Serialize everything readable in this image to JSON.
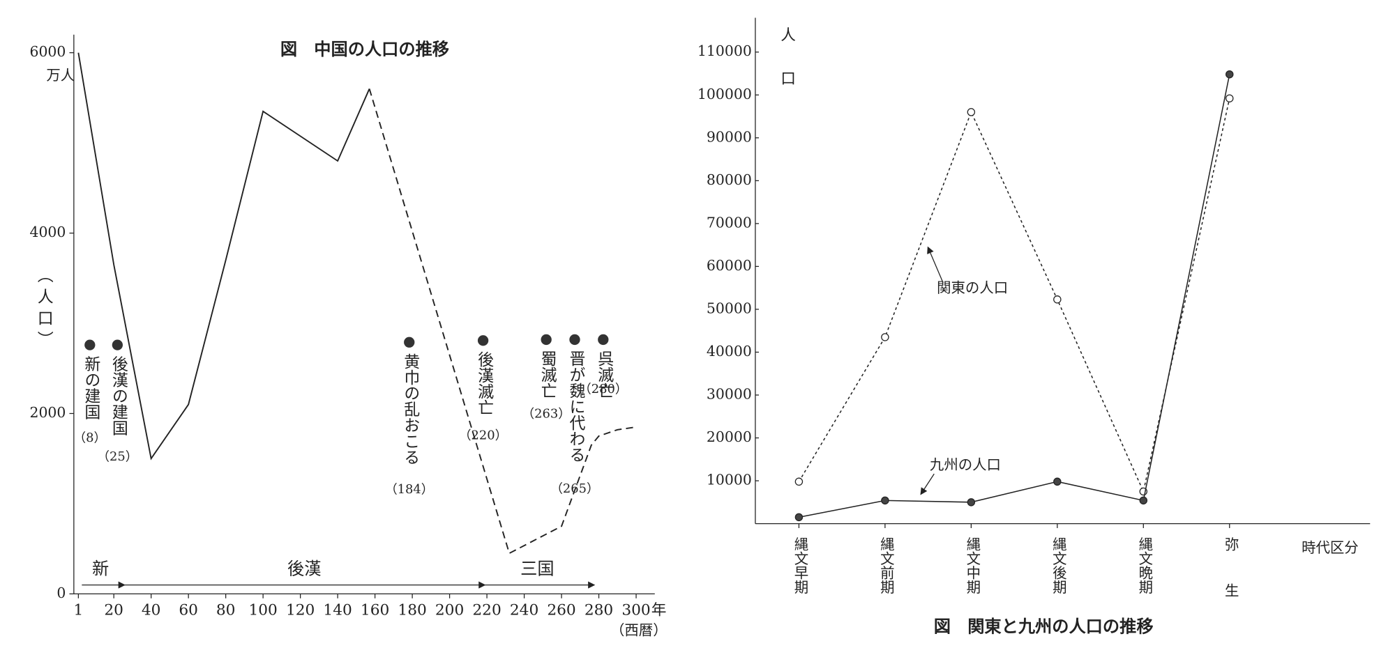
{
  "charts": [
    {
      "type": "line",
      "title": "図　中国の人口の推移",
      "unit_label": "万人",
      "ylabel": "（人口）",
      "xlabel": "年",
      "xlabel_note": "（西暦）",
      "xlim": [
        0,
        310
      ],
      "ylim": [
        0,
        6200
      ],
      "xticks": [
        1,
        20,
        40,
        60,
        80,
        100,
        120,
        140,
        160,
        180,
        200,
        220,
        240,
        260,
        280,
        300
      ],
      "yticks": [
        0,
        2000,
        4000,
        6000
      ],
      "series": [
        {
          "line_style": "solid",
          "color": "#222222",
          "x": [
            1,
            20,
            40,
            60,
            80,
            100,
            140,
            157
          ],
          "values": [
            6000,
            3650,
            1500,
            2100,
            3700,
            5350,
            4800,
            5600
          ]
        },
        {
          "line_style": "dashed",
          "color": "#222222",
          "x": [
            157,
            232,
            260,
            276,
            280,
            290,
            300
          ],
          "values": [
            5600,
            450,
            750,
            1650,
            1750,
            1820,
            1850
          ]
        }
      ],
      "events": [
        {
          "text": "新の建国",
          "year": "（8）"
        },
        {
          "text": "後漢の建国",
          "year": "（25）"
        },
        {
          "text": "黄巾の乱おこる",
          "year": "（184）"
        },
        {
          "text": "後漢滅亡",
          "year": "（220）"
        },
        {
          "text": "蜀滅亡",
          "year": "（263）"
        },
        {
          "text": "晋が魏に代わる",
          "year": "（265）"
        },
        {
          "text": "呉滅亡",
          "year": "（280）"
        }
      ],
      "periods": [
        "新",
        "後漢",
        "三国"
      ]
    },
    {
      "type": "line",
      "title": "図　関東と九州の人口の推移",
      "ylabel": "人口",
      "xlabel": "時代区分",
      "categories": [
        "縄文早期",
        "縄文前期",
        "縄文中期",
        "縄文後期",
        "縄文晩期",
        "弥生"
      ],
      "ylim": [
        0,
        118000
      ],
      "yticks": [
        10000,
        20000,
        30000,
        40000,
        50000,
        60000,
        70000,
        80000,
        90000,
        100000,
        110000
      ],
      "series": [
        {
          "name": "関東の人口",
          "color": "#222222",
          "marker": "open",
          "line_style": "dotted",
          "values": [
            9800,
            43500,
            96000,
            52300,
            7500,
            99200
          ]
        },
        {
          "name": "九州の人口",
          "color": "#222222",
          "marker": "filled",
          "line_style": "solid",
          "values": [
            1500,
            5400,
            5000,
            9800,
            5400,
            104800
          ]
        }
      ]
    }
  ]
}
